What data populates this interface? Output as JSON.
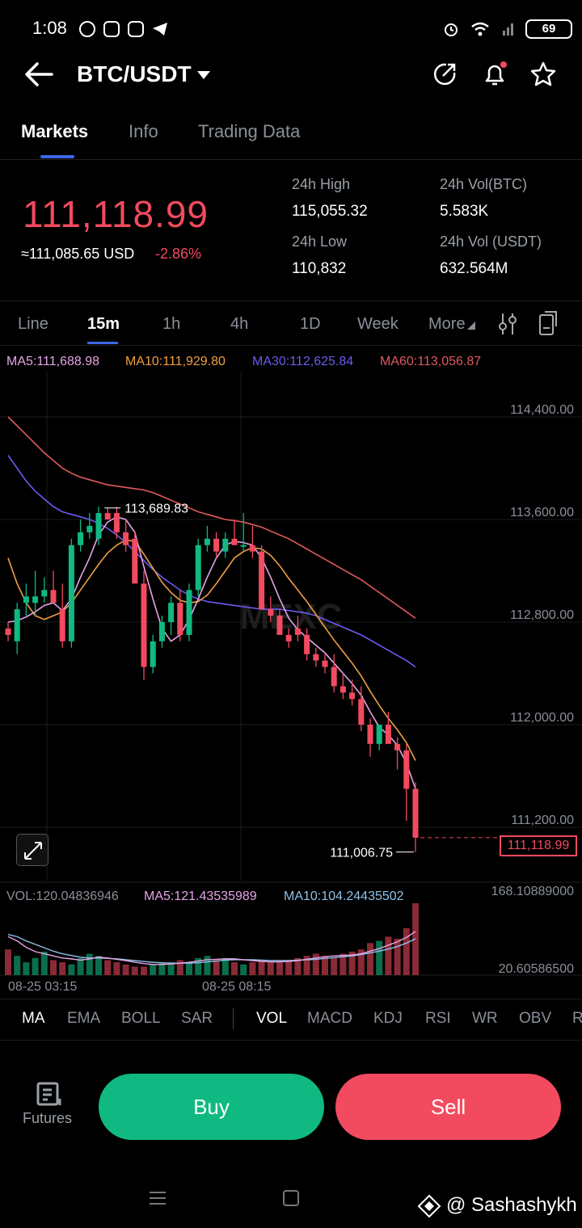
{
  "status_bar": {
    "time": "1:08",
    "battery": "69"
  },
  "header": {
    "title": "BTC/USDT"
  },
  "tabs": [
    {
      "label": "Markets"
    },
    {
      "label": "Info"
    },
    {
      "label": "Trading Data"
    }
  ],
  "price_panel": {
    "last_price": "111,118.99",
    "usd_price": "≈111,085.65 USD",
    "change": "-2.86%",
    "high_label": "24h High",
    "high_value": "115,055.32",
    "low_label": "24h Low",
    "low_value": "110,832",
    "vol_btc_label": "24h Vol(BTC)",
    "vol_btc_value": "5.583K",
    "vol_usdt_label": "24h Vol (USDT)",
    "vol_usdt_value": "632.564M"
  },
  "timeframes": [
    {
      "label": "Line"
    },
    {
      "label": "15m"
    },
    {
      "label": "1h"
    },
    {
      "label": "4h"
    },
    {
      "label": "1D"
    },
    {
      "label": "Week"
    },
    {
      "label": "More"
    }
  ],
  "ma_labels": {
    "ma5": "MA5:111,688.98",
    "ma10": "MA10:111,929.80",
    "ma30": "MA30:112,625.84",
    "ma60": "MA60:113,056.87"
  },
  "chart_data": {
    "type": "candlestick",
    "y_ticks": [
      "114,400.00",
      "113,600.00",
      "112,800.00",
      "112,000.00",
      "111,200.00"
    ],
    "y_tick_values": [
      114400,
      113600,
      112800,
      112000,
      111200
    ],
    "ylim": [
      110800,
      114800
    ],
    "high_annotation": "113,689.83",
    "high_value": 113689.83,
    "low_annotation": "111,006.75",
    "low_value": 111006.75,
    "last_price_tag": "111,118.99",
    "last_price": 111118.99,
    "x_ticks": [
      "08-25 03:15",
      "08-25 08:15"
    ],
    "candles": [
      {
        "o": 112750,
        "h": 112800,
        "l": 112650,
        "c": 112700
      },
      {
        "o": 112650,
        "h": 112950,
        "l": 112550,
        "c": 112900
      },
      {
        "o": 112950,
        "h": 113100,
        "l": 112850,
        "c": 113000
      },
      {
        "o": 112950,
        "h": 113200,
        "l": 112850,
        "c": 113000
      },
      {
        "o": 113000,
        "h": 113150,
        "l": 112950,
        "c": 113050
      },
      {
        "o": 113050,
        "h": 113200,
        "l": 112950,
        "c": 112950
      },
      {
        "o": 112900,
        "h": 113100,
        "l": 112600,
        "c": 112650
      },
      {
        "o": 112650,
        "h": 113450,
        "l": 112600,
        "c": 113400
      },
      {
        "o": 113400,
        "h": 113600,
        "l": 113350,
        "c": 113500
      },
      {
        "o": 113500,
        "h": 113650,
        "l": 113450,
        "c": 113550
      },
      {
        "o": 113450,
        "h": 113700,
        "l": 113400,
        "c": 113650
      },
      {
        "o": 113650,
        "h": 113690,
        "l": 113600,
        "c": 113600
      },
      {
        "o": 113650,
        "h": 113700,
        "l": 113450,
        "c": 113500
      },
      {
        "o": 113500,
        "h": 113600,
        "l": 113350,
        "c": 113400
      },
      {
        "o": 113450,
        "h": 113500,
        "l": 113100,
        "c": 113100
      },
      {
        "o": 113100,
        "h": 113200,
        "l": 112350,
        "c": 112450
      },
      {
        "o": 112450,
        "h": 112700,
        "l": 112400,
        "c": 112650
      },
      {
        "o": 112650,
        "h": 112850,
        "l": 112600,
        "c": 112800
      },
      {
        "o": 112800,
        "h": 113000,
        "l": 112700,
        "c": 112950
      },
      {
        "o": 112950,
        "h": 113050,
        "l": 112650,
        "c": 112700
      },
      {
        "o": 112700,
        "h": 113100,
        "l": 112650,
        "c": 113050
      },
      {
        "o": 113050,
        "h": 113450,
        "l": 113000,
        "c": 113400
      },
      {
        "o": 113400,
        "h": 113550,
        "l": 113350,
        "c": 113450
      },
      {
        "o": 113450,
        "h": 113500,
        "l": 113300,
        "c": 113350
      },
      {
        "o": 113350,
        "h": 113500,
        "l": 113300,
        "c": 113450
      },
      {
        "o": 113450,
        "h": 113600,
        "l": 113400,
        "c": 113400
      },
      {
        "o": 113400,
        "h": 113650,
        "l": 113350,
        "c": 113400
      },
      {
        "o": 113400,
        "h": 113550,
        "l": 113300,
        "c": 113350
      },
      {
        "o": 113350,
        "h": 113400,
        "l": 112900,
        "c": 112900
      },
      {
        "o": 112900,
        "h": 113000,
        "l": 112800,
        "c": 112850
      },
      {
        "o": 112850,
        "h": 112900,
        "l": 112700,
        "c": 112700
      },
      {
        "o": 112700,
        "h": 112750,
        "l": 112600,
        "c": 112650
      },
      {
        "o": 112750,
        "h": 112850,
        "l": 112650,
        "c": 112700
      },
      {
        "o": 112700,
        "h": 112750,
        "l": 112500,
        "c": 112550
      },
      {
        "o": 112550,
        "h": 112600,
        "l": 112450,
        "c": 112500
      },
      {
        "o": 112500,
        "h": 112550,
        "l": 112400,
        "c": 112450
      },
      {
        "o": 112450,
        "h": 112550,
        "l": 112250,
        "c": 112300
      },
      {
        "o": 112300,
        "h": 112400,
        "l": 112200,
        "c": 112250
      },
      {
        "o": 112250,
        "h": 112350,
        "l": 112150,
        "c": 112200
      },
      {
        "o": 112200,
        "h": 112300,
        "l": 111950,
        "c": 112000
      },
      {
        "o": 112000,
        "h": 112050,
        "l": 111750,
        "c": 111850
      },
      {
        "o": 111850,
        "h": 112000,
        "l": 111800,
        "c": 112000
      },
      {
        "o": 112000,
        "h": 112100,
        "l": 111850,
        "c": 111850
      },
      {
        "o": 111850,
        "h": 111900,
        "l": 111650,
        "c": 111800
      },
      {
        "o": 111800,
        "h": 111850,
        "l": 111250,
        "c": 111500
      },
      {
        "o": 111500,
        "h": 111550,
        "l": 111006.75,
        "c": 111118.99
      }
    ],
    "ma5_values": [
      112800,
      112810,
      112840,
      112880,
      112930,
      112950,
      112890,
      112980,
      113150,
      113300,
      113480,
      113580,
      113620,
      113600,
      113500,
      113230,
      112980,
      112750,
      112650,
      112700,
      112820,
      112980,
      113150,
      113300,
      113400,
      113430,
      113420,
      113400,
      113300,
      113150,
      112980,
      112830,
      112740,
      112680,
      112620,
      112560,
      112480,
      112400,
      112320,
      112230,
      112100,
      111980,
      111920,
      111840,
      111700,
      111500
    ],
    "ma10_values": [
      113300,
      113100,
      112950,
      112850,
      112820,
      112850,
      112880,
      112950,
      113050,
      113150,
      113250,
      113340,
      113400,
      113440,
      113430,
      113330,
      113220,
      113110,
      113030,
      112970,
      112950,
      112960,
      113010,
      113100,
      113200,
      113300,
      113350,
      113380,
      113370,
      113320,
      113240,
      113140,
      113050,
      112960,
      112860,
      112760,
      112660,
      112570,
      112480,
      112380,
      112260,
      112150,
      112050,
      111960,
      111860,
      111720
    ],
    "ma30_values": [
      114100,
      114000,
      113900,
      113820,
      113760,
      113700,
      113660,
      113640,
      113620,
      113600,
      113570,
      113530,
      113480,
      113420,
      113350,
      113280,
      113210,
      113150,
      113100,
      113050,
      113010,
      112980,
      112960,
      112950,
      112940,
      112930,
      112920,
      112910,
      112900,
      112900,
      112900,
      112890,
      112880,
      112870,
      112850,
      112820,
      112790,
      112760,
      112730,
      112700,
      112660,
      112620,
      112580,
      112540,
      112500,
      112450
    ],
    "ma60_values": [
      114400,
      114330,
      114260,
      114190,
      114120,
      114060,
      114000,
      113960,
      113930,
      113910,
      113890,
      113870,
      113860,
      113850,
      113840,
      113830,
      113810,
      113780,
      113750,
      113720,
      113690,
      113660,
      113640,
      113620,
      113600,
      113590,
      113580,
      113560,
      113540,
      113510,
      113480,
      113450,
      113410,
      113370,
      113330,
      113290,
      113250,
      113210,
      113170,
      113130,
      113080,
      113030,
      112980,
      112930,
      112880,
      112830
    ]
  },
  "volume": {
    "vol_label": "VOL:120.04836946",
    "ma5_label": "MA5:121.43535989",
    "ma10_label": "MA10:104.24435502",
    "max_label": "168.10889000",
    "min_label": "20.60586500",
    "ylim": [
      0,
      170
    ],
    "values": [
      60,
      45,
      30,
      40,
      55,
      35,
      30,
      25,
      40,
      50,
      45,
      35,
      30,
      25,
      20,
      20,
      25,
      30,
      30,
      35,
      30,
      40,
      45,
      35,
      40,
      30,
      25,
      30,
      35,
      30,
      30,
      35,
      40,
      45,
      50,
      45,
      40,
      50,
      55,
      60,
      75,
      80,
      90,
      85,
      110,
      168
    ],
    "ma5_values": [
      90,
      80,
      65,
      55,
      50,
      45,
      40,
      38,
      35,
      38,
      42,
      40,
      37,
      34,
      30,
      27,
      25,
      25,
      26,
      28,
      30,
      33,
      36,
      37,
      38,
      38,
      36,
      34,
      32,
      31,
      31,
      32,
      34,
      37,
      40,
      43,
      45,
      46,
      47,
      50,
      56,
      62,
      70,
      78,
      88,
      102
    ],
    "ma10_values": [
      95,
      90,
      80,
      72,
      64,
      56,
      50,
      46,
      42,
      40,
      40,
      39,
      38,
      36,
      34,
      32,
      30,
      29,
      28,
      28,
      28,
      29,
      31,
      33,
      35,
      36,
      36,
      36,
      35,
      34,
      34,
      34,
      35,
      36,
      37,
      39,
      41,
      43,
      45,
      48,
      52,
      56,
      61,
      67,
      75,
      85
    ]
  },
  "indicators": [
    {
      "label": "MA"
    },
    {
      "label": "EMA"
    },
    {
      "label": "BOLL"
    },
    {
      "label": "SAR"
    },
    {
      "label": "VOL"
    },
    {
      "label": "MACD"
    },
    {
      "label": "KDJ"
    },
    {
      "label": "RSI"
    },
    {
      "label": "WR"
    },
    {
      "label": "OBV"
    },
    {
      "label": "R"
    }
  ],
  "bottom_bar": {
    "futures_label": "Futures",
    "buy_label": "Buy",
    "sell_label": "Sell"
  },
  "watermark": "@ Sashashykh",
  "colors": {
    "up": "#10b981",
    "down": "#f24a5f",
    "accent": "#3c67e8",
    "ma5": "#e6a4e6",
    "ma10": "#f0a040",
    "ma30": "#6a5cf0",
    "ma60": "#e05a60"
  }
}
